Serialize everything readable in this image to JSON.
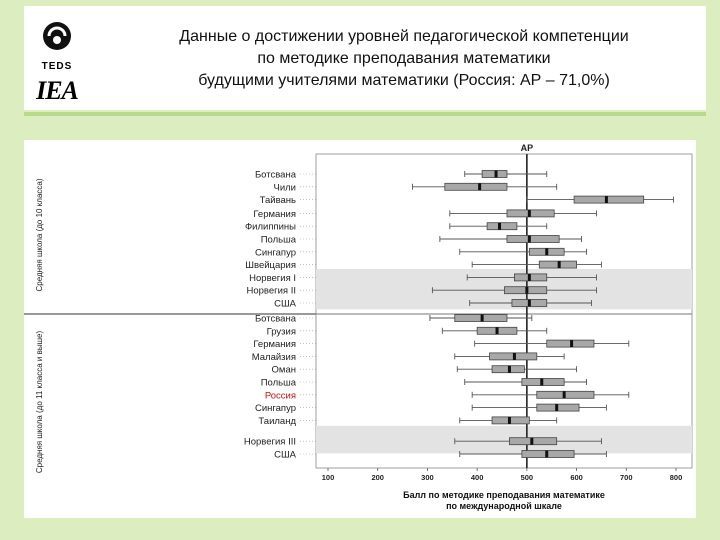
{
  "header": {
    "logo_teds": "TEDS",
    "logo_iea": "IEA",
    "title_lines": [
      "Данные о достижении уровней педагогической компетенции",
      "по методике преподавания математики",
      "будущими учителями математики (Россия: АР – 71,0%)"
    ]
  },
  "chart_data": {
    "type": "boxplot",
    "reference_label": "AP",
    "reference_value": 500,
    "xlim": [
      100,
      800
    ],
    "x_ticks": [
      100,
      200,
      300,
      400,
      500,
      600,
      700,
      800
    ],
    "xlabel_lines": [
      "Балл по методике преподавания математике",
      "по международной шкале"
    ],
    "groups": [
      {
        "label": "Средняя школа (до 10 класса)",
        "rows": [
          {
            "name": "Ботсвана",
            "whisker": [
              375,
              540
            ],
            "box": [
              410,
              460
            ],
            "median": 438,
            "shaded": false,
            "highlight": false
          },
          {
            "name": "Чили",
            "whisker": [
              270,
              560
            ],
            "box": [
              335,
              460
            ],
            "median": 405,
            "shaded": false,
            "highlight": false
          },
          {
            "name": "Тайвань",
            "whisker": [
              500,
              795
            ],
            "box": [
              595,
              735
            ],
            "median": 660,
            "shaded": false,
            "highlight": false
          },
          {
            "name": "Германия",
            "whisker": [
              345,
              640
            ],
            "box": [
              460,
              555
            ],
            "median": 505,
            "shaded": false,
            "highlight": false
          },
          {
            "name": "Филиппины",
            "whisker": [
              345,
              540
            ],
            "box": [
              420,
              480
            ],
            "median": 445,
            "shaded": false,
            "highlight": false
          },
          {
            "name": "Польша",
            "whisker": [
              325,
              610
            ],
            "box": [
              460,
              565
            ],
            "median": 505,
            "shaded": false,
            "highlight": false
          },
          {
            "name": "Сингапур",
            "whisker": [
              365,
              620
            ],
            "box": [
              505,
              575
            ],
            "median": 540,
            "shaded": false,
            "highlight": false
          },
          {
            "name": "Швейцария",
            "whisker": [
              390,
              650
            ],
            "box": [
              525,
              600
            ],
            "median": 565,
            "shaded": false,
            "highlight": false
          },
          {
            "name": "Норвегия I",
            "whisker": [
              380,
              640
            ],
            "box": [
              475,
              540
            ],
            "median": 505,
            "shaded": true,
            "highlight": false
          },
          {
            "name": "Норвегия II",
            "whisker": [
              310,
              640
            ],
            "box": [
              455,
              540
            ],
            "median": 500,
            "shaded": true,
            "highlight": false
          },
          {
            "name": "США",
            "whisker": [
              385,
              630
            ],
            "box": [
              470,
              540
            ],
            "median": 505,
            "shaded": true,
            "highlight": false
          }
        ]
      },
      {
        "label": "Средняя школа (до 11 класса и выше)",
        "rows": [
          {
            "name": "Ботсвана",
            "whisker": [
              305,
              510
            ],
            "box": [
              355,
              460
            ],
            "median": 410,
            "shaded": false,
            "highlight": false
          },
          {
            "name": "Грузия",
            "whisker": [
              330,
              540
            ],
            "box": [
              400,
              480
            ],
            "median": 440,
            "shaded": false,
            "highlight": false
          },
          {
            "name": "Германия",
            "whisker": [
              395,
              705
            ],
            "box": [
              540,
              635
            ],
            "median": 590,
            "shaded": false,
            "highlight": false
          },
          {
            "name": "Малайзия",
            "whisker": [
              355,
              575
            ],
            "box": [
              425,
              520
            ],
            "median": 475,
            "shaded": false,
            "highlight": false
          },
          {
            "name": "Оман",
            "whisker": [
              360,
              600
            ],
            "box": [
              430,
              495
            ],
            "median": 465,
            "shaded": false,
            "highlight": false
          },
          {
            "name": "Польша",
            "whisker": [
              375,
              620
            ],
            "box": [
              490,
              575
            ],
            "median": 530,
            "shaded": false,
            "highlight": false
          },
          {
            "name": "Россия",
            "whisker": [
              390,
              705
            ],
            "box": [
              520,
              635
            ],
            "median": 575,
            "shaded": false,
            "highlight": true
          },
          {
            "name": "Сингапур",
            "whisker": [
              390,
              660
            ],
            "box": [
              520,
              605
            ],
            "median": 560,
            "shaded": false,
            "highlight": false
          },
          {
            "name": "Таиланд",
            "whisker": [
              365,
              560
            ],
            "box": [
              430,
              505
            ],
            "median": 465,
            "shaded": false,
            "highlight": false
          },
          {
            "name": "Норвегия III",
            "whisker": [
              355,
              650
            ],
            "box": [
              465,
              560
            ],
            "median": 510,
            "shaded": true,
            "highlight": false
          },
          {
            "name": "США",
            "whisker": [
              365,
              660
            ],
            "box": [
              490,
              595
            ],
            "median": 540,
            "shaded": true,
            "highlight": false
          }
        ]
      }
    ]
  }
}
